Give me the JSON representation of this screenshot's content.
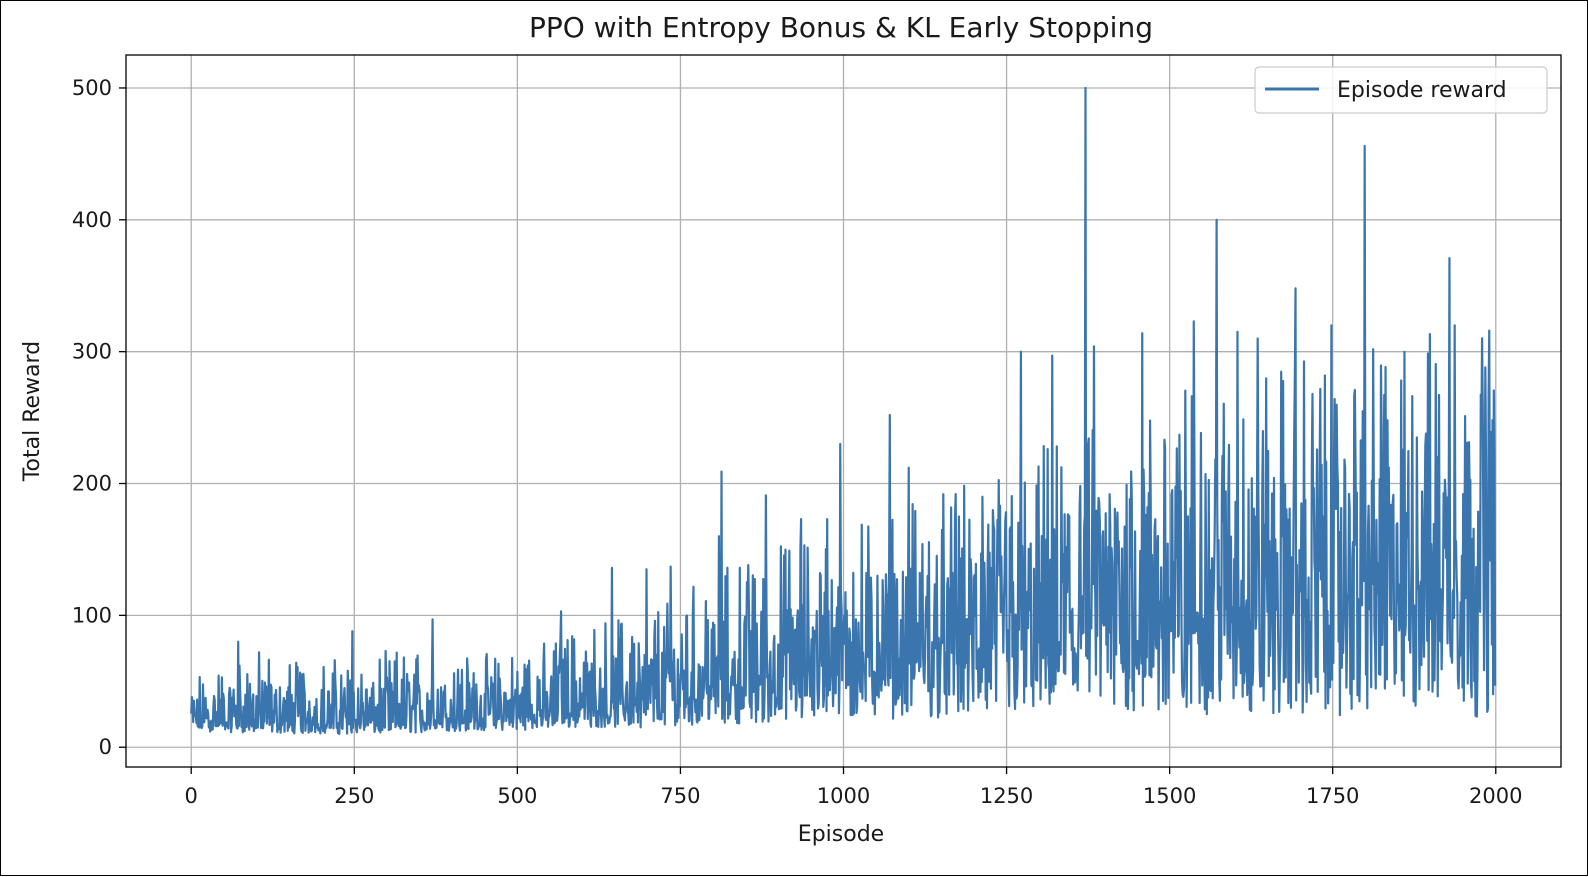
{
  "chart_data": {
    "type": "line",
    "title": "PPO with Entropy Bonus & KL Early Stopping",
    "xlabel": "Episode",
    "ylabel": "Total Reward",
    "xlim": [
      -100,
      2100
    ],
    "ylim": [
      -15,
      525
    ],
    "xticks": [
      0,
      250,
      500,
      750,
      1000,
      1250,
      1500,
      1750,
      2000
    ],
    "xtick_labels": [
      "0",
      "250",
      "500",
      "750",
      "1000",
      "1250",
      "1500",
      "1750",
      "2000"
    ],
    "yticks": [
      0,
      100,
      200,
      300,
      400,
      500
    ],
    "ytick_labels": [
      "0",
      "100",
      "200",
      "300",
      "400",
      "500"
    ],
    "grid": true,
    "legend_position": "upper-right",
    "series": [
      {
        "name": "Episode reward",
        "color": "#3a75ae",
        "num_points": 2000,
        "sampling_note": "2000 episodes; values summarized as envelope keypoints and notable spikes read from the plot",
        "envelope": [
          {
            "x": 0,
            "low": 12,
            "mid": 20,
            "high": 38
          },
          {
            "x": 100,
            "low": 11,
            "mid": 20,
            "high": 50
          },
          {
            "x": 200,
            "low": 10,
            "mid": 20,
            "high": 45
          },
          {
            "x": 300,
            "low": 10,
            "mid": 20,
            "high": 50
          },
          {
            "x": 400,
            "low": 12,
            "mid": 22,
            "high": 50
          },
          {
            "x": 500,
            "low": 13,
            "mid": 24,
            "high": 50
          },
          {
            "x": 600,
            "low": 15,
            "mid": 30,
            "high": 65
          },
          {
            "x": 700,
            "low": 15,
            "mid": 35,
            "high": 75
          },
          {
            "x": 800,
            "low": 18,
            "mid": 45,
            "high": 95
          },
          {
            "x": 900,
            "low": 18,
            "mid": 55,
            "high": 110
          },
          {
            "x": 1000,
            "low": 20,
            "mid": 65,
            "high": 125
          },
          {
            "x": 1100,
            "low": 22,
            "mid": 70,
            "high": 135
          },
          {
            "x": 1200,
            "low": 22,
            "mid": 75,
            "high": 145
          },
          {
            "x": 1300,
            "low": 25,
            "mid": 85,
            "high": 165
          },
          {
            "x": 1400,
            "low": 25,
            "mid": 95,
            "high": 180
          },
          {
            "x": 1500,
            "low": 22,
            "mid": 105,
            "high": 200
          },
          {
            "x": 1600,
            "low": 25,
            "mid": 110,
            "high": 205
          },
          {
            "x": 1700,
            "low": 22,
            "mid": 115,
            "high": 215
          },
          {
            "x": 1800,
            "low": 25,
            "mid": 120,
            "high": 220
          },
          {
            "x": 1900,
            "low": 25,
            "mid": 130,
            "high": 235
          },
          {
            "x": 2000,
            "low": 22,
            "mid": 140,
            "high": 245
          }
        ],
        "spikes": [
          {
            "x": 72,
            "y": 80
          },
          {
            "x": 247,
            "y": 88
          },
          {
            "x": 370,
            "y": 97
          },
          {
            "x": 567,
            "y": 103
          },
          {
            "x": 645,
            "y": 136
          },
          {
            "x": 698,
            "y": 135
          },
          {
            "x": 735,
            "y": 137
          },
          {
            "x": 809,
            "y": 160
          },
          {
            "x": 813,
            "y": 209
          },
          {
            "x": 881,
            "y": 191
          },
          {
            "x": 935,
            "y": 173
          },
          {
            "x": 975,
            "y": 173
          },
          {
            "x": 995,
            "y": 230
          },
          {
            "x": 1071,
            "y": 252
          },
          {
            "x": 1100,
            "y": 212
          },
          {
            "x": 1172,
            "y": 192
          },
          {
            "x": 1213,
            "y": 190
          },
          {
            "x": 1272,
            "y": 300
          },
          {
            "x": 1320,
            "y": 297
          },
          {
            "x": 1371,
            "y": 500
          },
          {
            "x": 1384,
            "y": 304
          },
          {
            "x": 1458,
            "y": 314
          },
          {
            "x": 1537,
            "y": 323
          },
          {
            "x": 1572,
            "y": 400
          },
          {
            "x": 1604,
            "y": 315
          },
          {
            "x": 1635,
            "y": 310
          },
          {
            "x": 1693,
            "y": 348
          },
          {
            "x": 1748,
            "y": 320
          },
          {
            "x": 1799,
            "y": 456
          },
          {
            "x": 1929,
            "y": 371
          },
          {
            "x": 1937,
            "y": 320
          },
          {
            "x": 1990,
            "y": 316
          }
        ]
      }
    ]
  }
}
